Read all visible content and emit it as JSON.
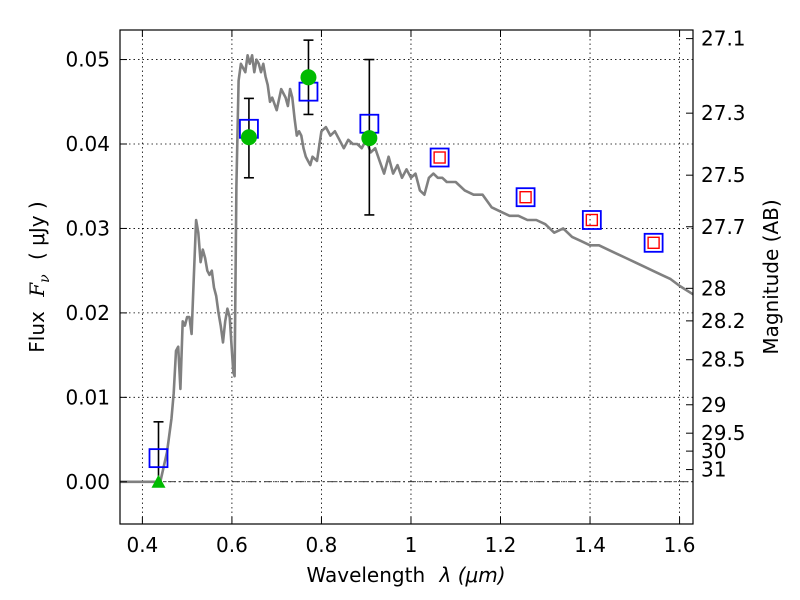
{
  "chart_data": {
    "type": "scatter",
    "xlabel_main": "Wavelength",
    "xlabel_symbol": "λ (μm)",
    "ylabel_main": "Flux",
    "ylabel_symbol": "F",
    "ylabel_subscript": "ν",
    "ylabel_unit": "( μJy )",
    "ylabel_right": "Magnitude (AB)",
    "xlim": [
      0.35,
      1.63
    ],
    "ylim": [
      -0.005,
      0.0535
    ],
    "x_ticks": [
      0.4,
      0.6,
      0.8,
      1.0,
      1.2,
      1.4,
      1.6
    ],
    "x_tick_labels": [
      "0.4",
      "0.6",
      "0.8",
      "1",
      "1.2",
      "1.4",
      "1.6"
    ],
    "y_ticks": [
      0.0,
      0.01,
      0.02,
      0.03,
      0.04,
      0.05
    ],
    "y_tick_labels": [
      "0.00",
      "0.01",
      "0.02",
      "0.03",
      "0.04",
      "0.05"
    ],
    "right_ticks": [
      27.1,
      27.3,
      27.5,
      27.7,
      28,
      28.2,
      28.5,
      29,
      29.5,
      30,
      31
    ],
    "right_tick_labels": [
      "27.1",
      "27.3",
      "27.5",
      "27.7",
      "28",
      "28.2",
      "28.5",
      "29",
      "29.5",
      "30",
      "31"
    ],
    "grid": true,
    "series": [
      {
        "kind": "line",
        "color": "#808080",
        "x": [
          0.35,
          0.44,
          0.455,
          0.465,
          0.47,
          0.475,
          0.48,
          0.485,
          0.49,
          0.495,
          0.5,
          0.505,
          0.51,
          0.515,
          0.52,
          0.525,
          0.53,
          0.535,
          0.54,
          0.545,
          0.55,
          0.555,
          0.56,
          0.565,
          0.57,
          0.575,
          0.58,
          0.585,
          0.59,
          0.595,
          0.6,
          0.603,
          0.606,
          0.61,
          0.615,
          0.62,
          0.625,
          0.63,
          0.635,
          0.64,
          0.645,
          0.65,
          0.655,
          0.66,
          0.665,
          0.67,
          0.675,
          0.68,
          0.685,
          0.69,
          0.7,
          0.71,
          0.72,
          0.725,
          0.73,
          0.735,
          0.74,
          0.745,
          0.75,
          0.755,
          0.76,
          0.765,
          0.77,
          0.775,
          0.78,
          0.79,
          0.8,
          0.81,
          0.82,
          0.83,
          0.84,
          0.85,
          0.86,
          0.87,
          0.88,
          0.89,
          0.9,
          0.91,
          0.92,
          0.93,
          0.94,
          0.95,
          0.96,
          0.97,
          0.98,
          0.99,
          1.0,
          1.01,
          1.02,
          1.03,
          1.04,
          1.05,
          1.06,
          1.07,
          1.08,
          1.1,
          1.12,
          1.14,
          1.16,
          1.18,
          1.2,
          1.22,
          1.24,
          1.26,
          1.28,
          1.3,
          1.32,
          1.34,
          1.36,
          1.38,
          1.4,
          1.42,
          1.44,
          1.46,
          1.48,
          1.5,
          1.52,
          1.54,
          1.56,
          1.58,
          1.6,
          1.63
        ],
        "y": [
          0.0,
          0.0,
          0.0035,
          0.0075,
          0.0105,
          0.0155,
          0.016,
          0.011,
          0.019,
          0.0185,
          0.0195,
          0.0195,
          0.0175,
          0.0245,
          0.031,
          0.0295,
          0.026,
          0.0275,
          0.0265,
          0.025,
          0.0245,
          0.025,
          0.023,
          0.022,
          0.02,
          0.0185,
          0.0165,
          0.019,
          0.0205,
          0.0195,
          0.0155,
          0.013,
          0.0125,
          0.035,
          0.0475,
          0.0495,
          0.049,
          0.0485,
          0.0505,
          0.0495,
          0.0505,
          0.0485,
          0.05,
          0.0495,
          0.0485,
          0.0495,
          0.048,
          0.047,
          0.045,
          0.0455,
          0.044,
          0.0465,
          0.0455,
          0.0445,
          0.0465,
          0.0455,
          0.043,
          0.041,
          0.0415,
          0.041,
          0.0395,
          0.0385,
          0.038,
          0.0375,
          0.0385,
          0.038,
          0.0415,
          0.042,
          0.041,
          0.0415,
          0.0405,
          0.0395,
          0.0405,
          0.04,
          0.04,
          0.0395,
          0.0405,
          0.039,
          0.0395,
          0.038,
          0.0365,
          0.0385,
          0.0365,
          0.0375,
          0.036,
          0.037,
          0.036,
          0.0365,
          0.0345,
          0.034,
          0.036,
          0.0365,
          0.036,
          0.036,
          0.0355,
          0.0355,
          0.0345,
          0.034,
          0.034,
          0.0325,
          0.032,
          0.0315,
          0.0315,
          0.031,
          0.031,
          0.0305,
          0.0295,
          0.03,
          0.029,
          0.0285,
          0.028,
          0.028,
          0.0275,
          0.027,
          0.0265,
          0.026,
          0.0255,
          0.025,
          0.0245,
          0.024,
          0.0232,
          0.0222
        ]
      },
      {
        "kind": "model-square",
        "color": "#0000ff",
        "x": [
          0.436,
          0.638,
          0.771,
          0.907,
          1.064,
          1.256,
          1.404,
          1.542
        ],
        "y": [
          0.0028,
          0.0418,
          0.0462,
          0.0424,
          0.0384,
          0.0337,
          0.031,
          0.0283
        ]
      },
      {
        "kind": "model-square-inner",
        "color": "#ff0000",
        "x": [
          1.064,
          1.256,
          1.404,
          1.542
        ],
        "y": [
          0.0384,
          0.0337,
          0.031,
          0.0283
        ]
      },
      {
        "kind": "observed",
        "color": "#00bb00",
        "points": [
          {
            "x": 0.638,
            "y": 0.0408,
            "err_low": 0.036,
            "err_high": 0.0454
          },
          {
            "x": 0.771,
            "y": 0.0479,
            "err_low": 0.0435,
            "err_high": 0.0523
          },
          {
            "x": 0.907,
            "y": 0.0407,
            "err_low": 0.0316,
            "err_high": 0.05
          }
        ]
      },
      {
        "kind": "upper-limit",
        "color": "#00bb00",
        "points": [
          {
            "x": 0.436,
            "y": 0.0,
            "err_low": 0.0,
            "err_high": 0.0071
          }
        ]
      }
    ]
  }
}
